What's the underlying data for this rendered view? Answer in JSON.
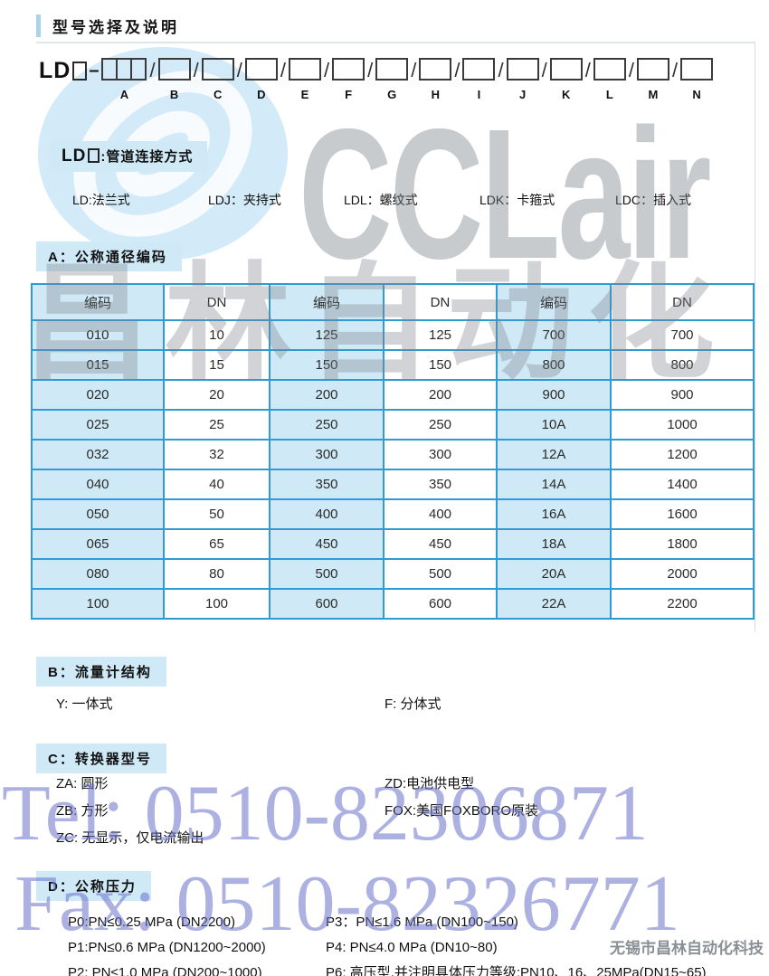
{
  "page": {
    "title": "型号选择及说明"
  },
  "model_code": {
    "prefix": "LD",
    "dash": "–",
    "segments": [
      {
        "label": "A",
        "boxes": 3
      },
      {
        "label": "B",
        "boxes": 1
      },
      {
        "label": "C",
        "boxes": 1
      },
      {
        "label": "D",
        "boxes": 1
      },
      {
        "label": "E",
        "boxes": 1
      },
      {
        "label": "F",
        "boxes": 1
      },
      {
        "label": "G",
        "boxes": 1
      },
      {
        "label": "H",
        "boxes": 1
      },
      {
        "label": "I",
        "boxes": 1
      },
      {
        "label": "J",
        "boxes": 1
      },
      {
        "label": "K",
        "boxes": 1
      },
      {
        "label": "L",
        "boxes": 1
      },
      {
        "label": "M",
        "boxes": 1
      },
      {
        "label": "N",
        "boxes": 1
      }
    ]
  },
  "sections": {
    "connection": {
      "label_prefix": "LD",
      "label_suffix": ":管道连接方式",
      "options": [
        "LD:法兰式",
        "LDJ：夹持式",
        "LDL：螺纹式",
        "LDK：卡箍式",
        "LDC：插入式"
      ]
    },
    "a": {
      "label": "A：公称通径编码",
      "table": {
        "headers": [
          "编码",
          "DN",
          "编码",
          "DN",
          "编码",
          "DN"
        ],
        "rows": [
          [
            "010",
            "10",
            "125",
            "125",
            "700",
            "700"
          ],
          [
            "015",
            "15",
            "150",
            "150",
            "800",
            "800"
          ],
          [
            "020",
            "20",
            "200",
            "200",
            "900",
            "900"
          ],
          [
            "025",
            "25",
            "250",
            "250",
            "10A",
            "1000"
          ],
          [
            "032",
            "32",
            "300",
            "300",
            "12A",
            "1200"
          ],
          [
            "040",
            "40",
            "350",
            "350",
            "14A",
            "1400"
          ],
          [
            "050",
            "50",
            "400",
            "400",
            "16A",
            "1600"
          ],
          [
            "065",
            "65",
            "450",
            "450",
            "18A",
            "1800"
          ],
          [
            "080",
            "80",
            "500",
            "500",
            "20A",
            "2000"
          ],
          [
            "100",
            "100",
            "600",
            "600",
            "22A",
            "2200"
          ]
        ]
      }
    },
    "b": {
      "label": "B：流量计结构",
      "left": [
        "Y: 一体式"
      ],
      "right": [
        "F: 分体式"
      ]
    },
    "c": {
      "label": "C：转换器型号",
      "left": [
        "ZA: 圆形",
        "ZB: 方形",
        "ZC: 无显示，仅电流输出"
      ],
      "right": [
        "ZD:电池供电型",
        "FOX:美国FOXBORO原装"
      ]
    },
    "d": {
      "label": "D：公称压力",
      "left": [
        "P0:PN≤0.25 MPa (DN2200)",
        "P1:PN≤0.6 MPa (DN1200~2000)",
        "P2: PN≤1.0 MPa (DN200~1000)"
      ],
      "right": [
        "P3：PN≤1.6 MPa (DN100~150)",
        "P4: PN≤4.0 MPa (DN10~80)",
        "P6: 高压型,并注明具体压力等级:PN10、16、25MPa(DN15~65)"
      ]
    }
  },
  "watermarks": {
    "logo_text": "CCLair",
    "brand_text": "昌林自动化",
    "tel": "Tel: 0510-82306871",
    "fax": "Fax: 0510-82326771",
    "company": "无锡市昌林自动化科技"
  },
  "colors": {
    "table_border": "#2f9bd5",
    "cell_blue": "#cfe9f6",
    "label_bg": "#cfe9f7",
    "accent_bar": "#a9d3ea",
    "watermark_gray": "#7e848b",
    "watermark_blue": "#6a72cc"
  }
}
